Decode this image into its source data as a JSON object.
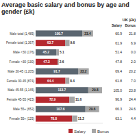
{
  "chart_data": {
    "type": "bar",
    "title": "Average basic salary and bonus by age and gender (£k)",
    "orientation": "horizontal",
    "stacked": true,
    "data_labels": true,
    "tick_labels": false,
    "grid": false,
    "legend": "bottom",
    "categories": [
      "Male total (1,485)",
      "Female total (1,367)",
      "Male <30 (176)",
      "Female <30 (130)",
      "Male 30-45 (1,205)",
      "Female 30-45 (874)",
      "Male 45-55 (1,145)",
      "Female 45-55 (415)",
      "Male 55+ (652)",
      "Female 55+ (125)"
    ],
    "xlim": [
      0,
      145
    ],
    "series": [
      {
        "name": "Salary",
        "color": "#b5292f",
        "colors": [
          "#5b6670",
          "#b5292f",
          "#5b6670",
          "#b5292f",
          "#5b6670",
          "#b5292f",
          "#5b6670",
          "#b5292f",
          "#5b6670",
          "#b5292f"
        ],
        "values": [
          100.7,
          63.7,
          45.2,
          47.3,
          91.7,
          64.4,
          113.7,
          72.9,
          107.6,
          78.8
        ]
      },
      {
        "name": "Bonus",
        "color": "#a6a6a6",
        "values": [
          23.4,
          9.6,
          5.1,
          2.6,
          23.2,
          8.4,
          29.8,
          11.6,
          29.6,
          11.2
        ]
      }
    ]
  },
  "table": {
    "title": "UK (£k)",
    "columns": [
      "Salary",
      "Bonus"
    ],
    "rows": [
      [
        "60.9",
        "21.8"
      ],
      [
        "61.9",
        "6.9"
      ],
      [
        "51.4",
        "0.0"
      ],
      [
        "47.8",
        "2.0"
      ],
      [
        "69.4",
        "20.2"
      ],
      [
        "61.8",
        "7.0"
      ],
      [
        "105.0",
        "23.8"
      ],
      [
        "96.9",
        "24.4"
      ],
      [
        "66.3",
        "24.6"
      ],
      [
        "63.1",
        "4.4"
      ]
    ]
  }
}
